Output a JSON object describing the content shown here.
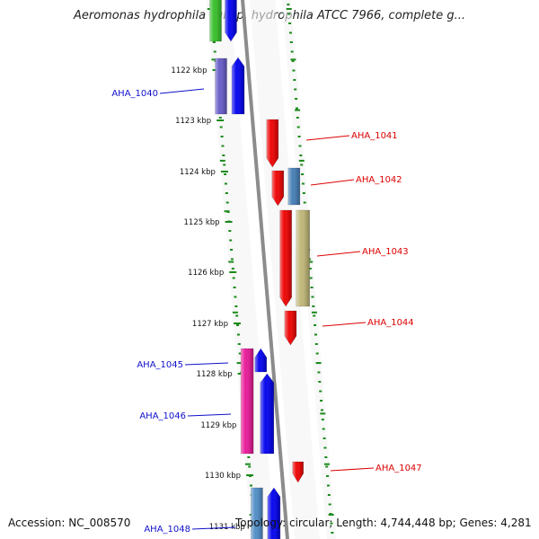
{
  "title": "Aeromonas hydrophila subsp. hydrophila ATCC 7966, complete g...",
  "footer": {
    "accession": "Accession: NC_008570",
    "summary": "Topology: circular; Length: 4,744,448 bp; Genes: 4,281"
  },
  "colors": {
    "background": "#ffffff",
    "backbone": "#8c8c8c",
    "tick": "#1a8a1a",
    "label_forward": "#1010cc",
    "label_reverse": "#dd0000",
    "blue": "#0a0aee",
    "red": "#ee0a0a",
    "green": "#3cc030",
    "magenta": "#e8209a",
    "slate": "#6a5fc8",
    "steel": "#4a82b8",
    "khaki": "#c0b87a",
    "powder": "#5590c8"
  },
  "scale": {
    "unit": "kbp",
    "ticks": [
      {
        "label": "1122 kbp"
      },
      {
        "label": "1123 kbp"
      },
      {
        "label": "1124 kbp"
      },
      {
        "label": "1125 kbp"
      },
      {
        "label": "1126 kbp"
      },
      {
        "label": "1127 kbp"
      },
      {
        "label": "1128 kbp"
      },
      {
        "label": "1129 kbp"
      },
      {
        "label": "1130 kbp"
      },
      {
        "label": "1131 kbp"
      }
    ]
  },
  "genes": [
    {
      "id": "AHA_1040",
      "strand": "forward"
    },
    {
      "id": "AHA_1041",
      "strand": "reverse"
    },
    {
      "id": "AHA_1042",
      "strand": "reverse"
    },
    {
      "id": "AHA_1043",
      "strand": "reverse"
    },
    {
      "id": "AHA_1044",
      "strand": "reverse"
    },
    {
      "id": "AHA_1045",
      "strand": "forward"
    },
    {
      "id": "AHA_1046",
      "strand": "forward"
    },
    {
      "id": "AHA_1047",
      "strand": "reverse"
    },
    {
      "id": "AHA_1048",
      "strand": "forward"
    }
  ]
}
